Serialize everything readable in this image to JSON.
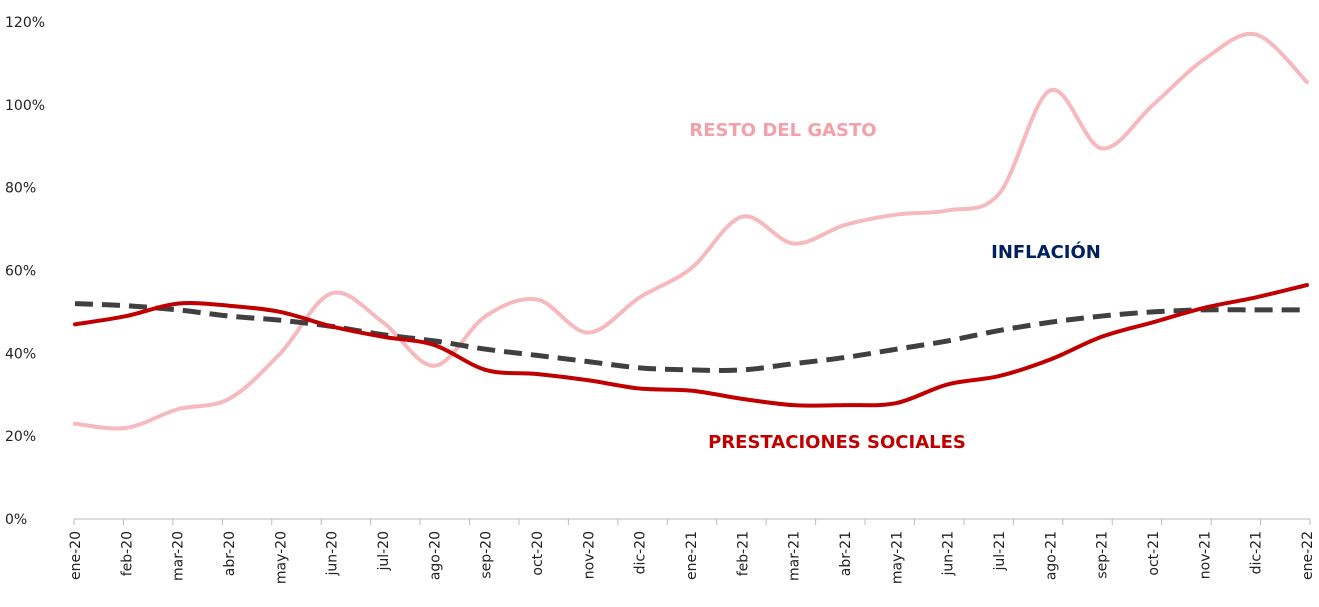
{
  "chart_data": {
    "type": "line",
    "categories": [
      "ene-20",
      "feb-20",
      "mar-20",
      "abr-20",
      "may-20",
      "jun-20",
      "jul-20",
      "ago-20",
      "sep-20",
      "oct-20",
      "nov-20",
      "dic-20",
      "ene-21",
      "feb-21",
      "mar-21",
      "abr-21",
      "may-21",
      "jun-21",
      "jul-21",
      "ago-21",
      "sep-21",
      "oct-21",
      "nov-21",
      "dic-21",
      "ene-22"
    ],
    "series": [
      {
        "name": "RESTO DEL GASTO",
        "color": "#f6b9be",
        "label_color": "#f4a0a8",
        "dash": false,
        "values": [
          23,
          22,
          26.5,
          29,
          40,
          54.5,
          47.5,
          37,
          49,
          53,
          45,
          53.5,
          60.5,
          73,
          66.5,
          71,
          73.5,
          74.5,
          78.5,
          103.5,
          89.5,
          100,
          111,
          117,
          105.5
        ]
      },
      {
        "name": "PRESTACIONES SOCIALES",
        "color": "#c00000",
        "label_color": "#c00000",
        "dash": false,
        "values": [
          47,
          49,
          52,
          51.5,
          50,
          46.5,
          44,
          42,
          36,
          35,
          33.5,
          31.5,
          31,
          29,
          27.5,
          27.5,
          28,
          32.5,
          34.5,
          38.5,
          44,
          47.5,
          51,
          53.5,
          56.5
        ]
      },
      {
        "name": "INFLACIÓN",
        "color": "#404040",
        "label_color": "#002060",
        "dash": true,
        "values": [
          52,
          51.5,
          50.5,
          49,
          48,
          46.5,
          44.5,
          43,
          41,
          39.5,
          38,
          36.5,
          36,
          36,
          37.5,
          39,
          41,
          43,
          45.5,
          47.5,
          49,
          50,
          50.5,
          50.5,
          50.5
        ]
      }
    ],
    "ylim": [
      0,
      120
    ],
    "yticks": [
      {
        "value": 0,
        "label": "0%"
      },
      {
        "value": 20,
        "label": "20%"
      },
      {
        "value": 40,
        "label": "40%"
      },
      {
        "value": 60,
        "label": "60%"
      },
      {
        "value": 80,
        "label": "80%"
      },
      {
        "value": 100,
        "label": "100%"
      },
      {
        "value": 120,
        "label": "120%"
      }
    ],
    "grid": false
  }
}
